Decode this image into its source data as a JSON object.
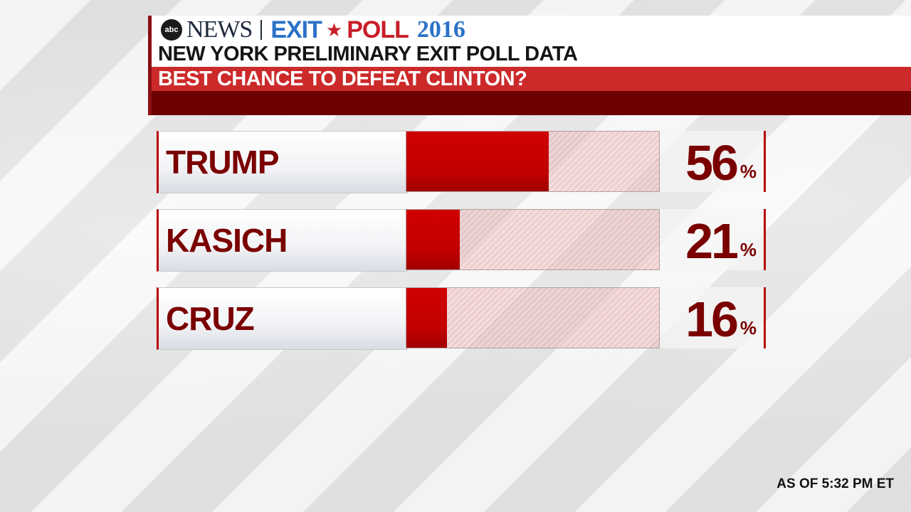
{
  "header": {
    "network_logo": "abc",
    "network_name": "NEWS",
    "brand_exit": "EXIT",
    "brand_poll": "POLL",
    "brand_year": "2016",
    "subtitle": "NEW YORK PRELIMINARY EXIT POLL DATA",
    "question": "BEST CHANCE TO DEFEAT CLINTON?"
  },
  "colors": {
    "accent_red": "#c00000",
    "dark_red": "#6e0000",
    "label_text": "#7a0000",
    "brand_blue": "#2a72c8"
  },
  "chart_data": {
    "type": "bar",
    "orientation": "horizontal",
    "categories": [
      "TRUMP",
      "KASICH",
      "CRUZ"
    ],
    "values": [
      56,
      21,
      16
    ],
    "value_labels": [
      "56",
      "21",
      "16"
    ],
    "unit": "%",
    "xlim": [
      0,
      100
    ]
  },
  "footer": {
    "timestamp": "AS OF 5:32 PM ET"
  }
}
